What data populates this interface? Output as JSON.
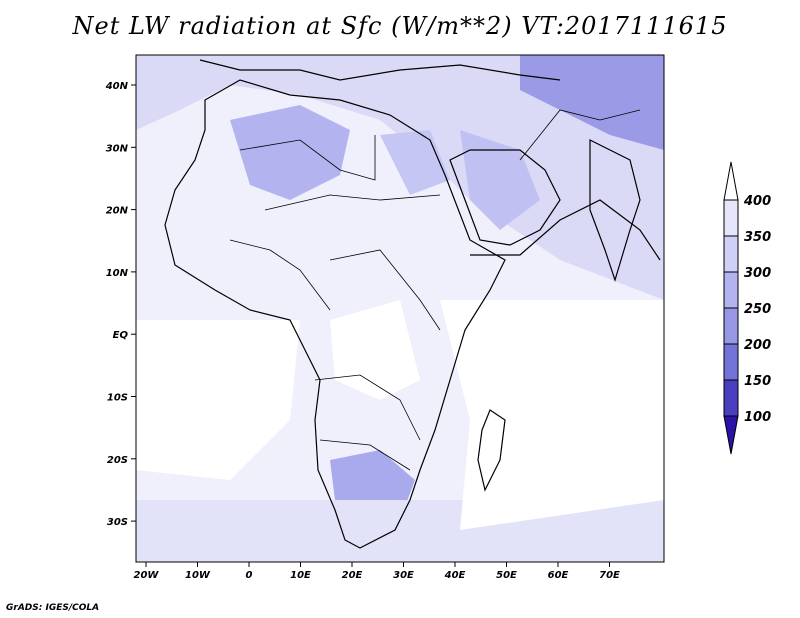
{
  "title": "Net LW radiation at Sfc (W/m**2) VT:2017111615",
  "credit": "GrADS: IGES/COLA",
  "axes": {
    "x_ticks": [
      "20W",
      "10W",
      "0",
      "10E",
      "20E",
      "30E",
      "40E",
      "50E",
      "60E",
      "70E"
    ],
    "y_ticks": [
      "40N",
      "30N",
      "20N",
      "10N",
      "EQ",
      "10S",
      "20S",
      "30S"
    ]
  },
  "colorbar": {
    "labels": [
      "400",
      "350",
      "300",
      "250",
      "200",
      "150",
      "100"
    ],
    "colors": [
      "#ffffff",
      "#e6e6fb",
      "#cfcff7",
      "#b3b3f0",
      "#9797e6",
      "#7373d8",
      "#4a3fc0",
      "#2a13a6"
    ]
  },
  "map": {
    "ocean_color": "#f4f4fd",
    "land_color": "#d9d9f7",
    "desert_color": "#b7b7ef",
    "border_color": "#000000"
  }
}
